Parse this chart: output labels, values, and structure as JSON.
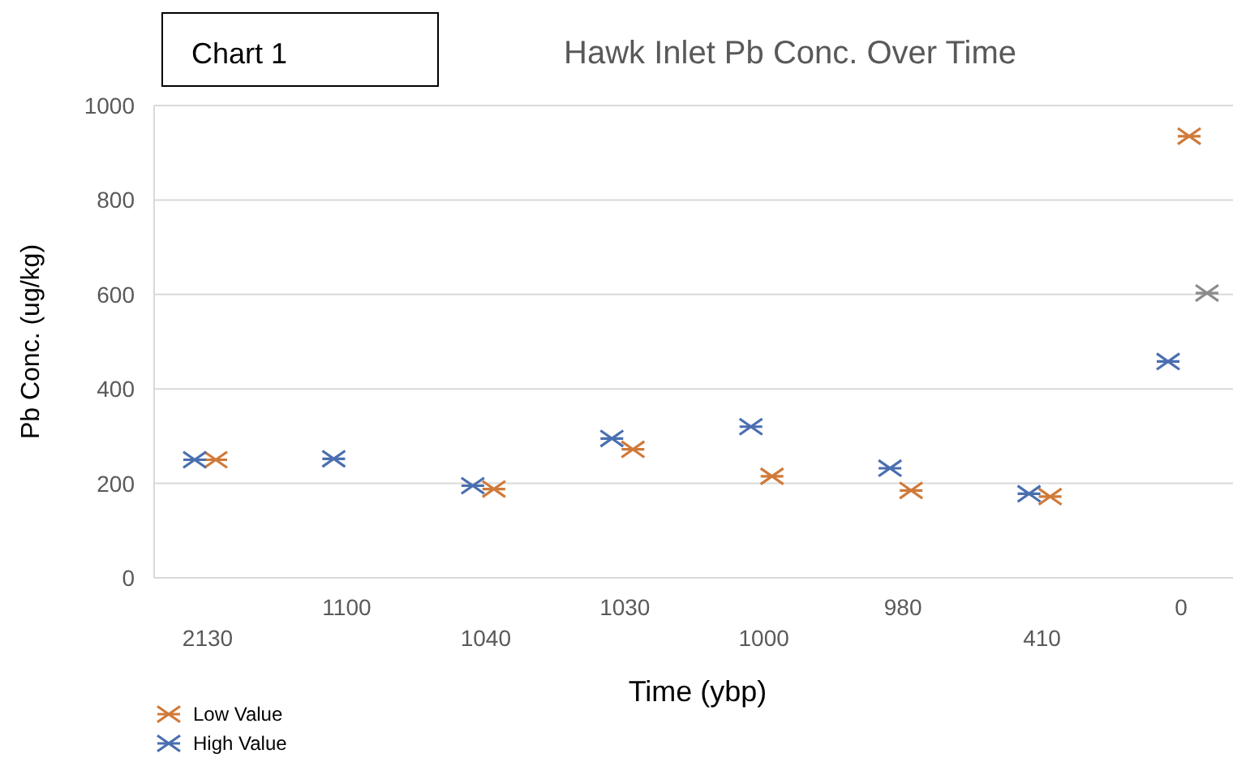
{
  "chart_data": {
    "type": "scatter",
    "title": "Hawk Inlet Pb Conc. Over Time",
    "xlabel": "Time (ybp)",
    "ylabel": "Pb Conc. (ug/kg)",
    "annotations": [
      "Chart 1"
    ],
    "categories": [
      "2130",
      "1100",
      "1040",
      "1030",
      "1000",
      "980",
      "410",
      "0"
    ],
    "series": [
      {
        "name": "Low Value",
        "color": "#d07a3a",
        "values": [
          250,
          null,
          188,
          272,
          215,
          185,
          172,
          935
        ]
      },
      {
        "name": "High Value",
        "color": "#4a6fb0",
        "values": [
          250,
          252,
          195,
          295,
          320,
          232,
          178,
          458
        ]
      },
      {
        "color": "#8c8c8c",
        "values": [
          null,
          null,
          null,
          null,
          null,
          null,
          null,
          603
        ]
      }
    ],
    "ylim": [
      0,
      1000
    ],
    "yticks": [
      0,
      200,
      400,
      600,
      800,
      1000
    ],
    "grid": "y",
    "legend": "bottom left",
    "marker": "cross"
  }
}
